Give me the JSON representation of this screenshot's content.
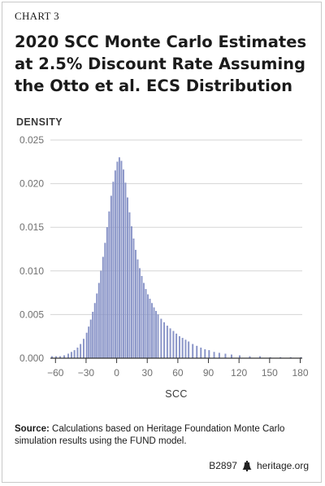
{
  "header": {
    "chart_label": "CHART 3",
    "title": "2020 SCC Monte Carlo Estimates at 2.5% Discount Rate Assuming the Otto et al. ECS Distribution"
  },
  "footer": {
    "source_label": "Source:",
    "source_text": "Calculations based on Heritage Foundation Monte Carlo simulation results using the FUND model.",
    "code": "B2897",
    "site": "heritage.org",
    "logo_icon": "liberty-bell-icon"
  },
  "colors": {
    "bar": "#8b96c8",
    "bar_edge": "#7582bf",
    "grid": "#d5d5d5",
    "axis": "#333333"
  },
  "chart_data": {
    "type": "bar",
    "title": "2020 SCC Monte Carlo Estimates at 2.5% Discount Rate Assuming the Otto et al. ECS Distribution",
    "ylabel": "DENSITY",
    "xlabel": "SCC",
    "xlim": [
      -65,
      182
    ],
    "ylim": [
      0,
      0.025
    ],
    "x_ticks": [
      -60,
      -30,
      0,
      30,
      60,
      90,
      120,
      150,
      180
    ],
    "y_ticks": [
      "0.000",
      "0.005",
      "0.010",
      "0.015",
      "0.020",
      "0.025"
    ],
    "grid": "horizontal",
    "bin_width": 1,
    "bins": [
      {
        "x": -64,
        "y": 0.0002
      },
      {
        "x": -60,
        "y": 0.0002
      },
      {
        "x": -56,
        "y": 0.0002
      },
      {
        "x": -52,
        "y": 0.0003
      },
      {
        "x": -48,
        "y": 0.0005
      },
      {
        "x": -45,
        "y": 0.0007
      },
      {
        "x": -42,
        "y": 0.0009
      },
      {
        "x": -39,
        "y": 0.0012
      },
      {
        "x": -36,
        "y": 0.0016
      },
      {
        "x": -33,
        "y": 0.0022
      },
      {
        "x": -30,
        "y": 0.0029
      },
      {
        "x": -28,
        "y": 0.0036
      },
      {
        "x": -26,
        "y": 0.0044
      },
      {
        "x": -24,
        "y": 0.0053
      },
      {
        "x": -22,
        "y": 0.0063
      },
      {
        "x": -20,
        "y": 0.0074
      },
      {
        "x": -18,
        "y": 0.0086
      },
      {
        "x": -16,
        "y": 0.01
      },
      {
        "x": -14,
        "y": 0.0116
      },
      {
        "x": -12,
        "y": 0.0132
      },
      {
        "x": -10,
        "y": 0.015
      },
      {
        "x": -8,
        "y": 0.0168
      },
      {
        "x": -6,
        "y": 0.0186
      },
      {
        "x": -4,
        "y": 0.0202
      },
      {
        "x": -2,
        "y": 0.0215
      },
      {
        "x": 0,
        "y": 0.0225
      },
      {
        "x": 2,
        "y": 0.023
      },
      {
        "x": 4,
        "y": 0.0226
      },
      {
        "x": 6,
        "y": 0.0216
      },
      {
        "x": 8,
        "y": 0.0201
      },
      {
        "x": 10,
        "y": 0.0184
      },
      {
        "x": 12,
        "y": 0.0167
      },
      {
        "x": 14,
        "y": 0.0151
      },
      {
        "x": 16,
        "y": 0.0137
      },
      {
        "x": 18,
        "y": 0.0124
      },
      {
        "x": 20,
        "y": 0.0113
      },
      {
        "x": 22,
        "y": 0.0103
      },
      {
        "x": 24,
        "y": 0.0094
      },
      {
        "x": 26,
        "y": 0.0086
      },
      {
        "x": 28,
        "y": 0.0079
      },
      {
        "x": 30,
        "y": 0.0073
      },
      {
        "x": 32,
        "y": 0.0068
      },
      {
        "x": 34,
        "y": 0.0063
      },
      {
        "x": 36,
        "y": 0.0058
      },
      {
        "x": 38,
        "y": 0.0054
      },
      {
        "x": 40,
        "y": 0.005
      },
      {
        "x": 43,
        "y": 0.0045
      },
      {
        "x": 46,
        "y": 0.0041
      },
      {
        "x": 49,
        "y": 0.0037
      },
      {
        "x": 52,
        "y": 0.0034
      },
      {
        "x": 55,
        "y": 0.0031
      },
      {
        "x": 58,
        "y": 0.0028
      },
      {
        "x": 61,
        "y": 0.0025
      },
      {
        "x": 64,
        "y": 0.0023
      },
      {
        "x": 67,
        "y": 0.0021
      },
      {
        "x": 70,
        "y": 0.0019
      },
      {
        "x": 74,
        "y": 0.0016
      },
      {
        "x": 78,
        "y": 0.0014
      },
      {
        "x": 82,
        "y": 0.0012
      },
      {
        "x": 86,
        "y": 0.001
      },
      {
        "x": 90,
        "y": 0.0009
      },
      {
        "x": 95,
        "y": 0.0007
      },
      {
        "x": 100,
        "y": 0.0006
      },
      {
        "x": 106,
        "y": 0.0005
      },
      {
        "x": 112,
        "y": 0.0004
      },
      {
        "x": 120,
        "y": 0.0003
      },
      {
        "x": 130,
        "y": 0.0002
      },
      {
        "x": 140,
        "y": 0.0002
      },
      {
        "x": 150,
        "y": 0.0001
      },
      {
        "x": 160,
        "y": 0.0001
      },
      {
        "x": 170,
        "y": 0.0001
      },
      {
        "x": 180,
        "y": 0.0001
      }
    ]
  }
}
